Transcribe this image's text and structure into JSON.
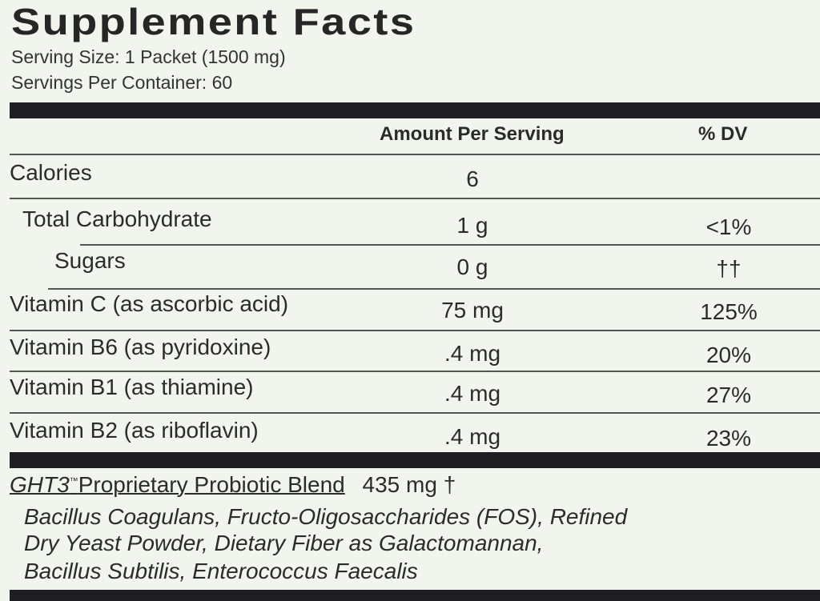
{
  "title": "Supplement Facts",
  "serving_size": "Serving Size: 1 Packet (1500 mg)",
  "servings_per_container": "Servings Per Container: 60",
  "header": {
    "amount": "Amount Per Serving",
    "dv": "% DV"
  },
  "rows": [
    {
      "name": "Calories",
      "amount": "6",
      "dv": ""
    },
    {
      "name": "Total Carbohydrate",
      "amount": "1 g",
      "dv": "<1%"
    },
    {
      "name": "Sugars",
      "amount": "0 g",
      "dv": "††"
    },
    {
      "name": "Vitamin C (as ascorbic acid)",
      "amount": "75 mg",
      "dv": "125%"
    },
    {
      "name": "Vitamin B6 (as pyridoxine)",
      "amount": ".4 mg",
      "dv": "20%"
    },
    {
      "name": "Vitamin B1 (as thiamine)",
      "amount": ".4 mg",
      "dv": "27%"
    },
    {
      "name": "Vitamin B2 (as riboflavin)",
      "amount": ".4 mg",
      "dv": "23%"
    }
  ],
  "blend": {
    "brand": "GHT3",
    "tm": "™",
    "name": "Proprietary Probiotic Blend",
    "amount": "435 mg †",
    "ingredients": [
      "Bacillus Coagulans, Fructo-Oligosaccharides (FOS), Refined",
      "Dry Yeast Powder, Dietary Fiber as Galactomannan,",
      "Bacillus Subtilis, Enterococcus Faecalis"
    ]
  }
}
